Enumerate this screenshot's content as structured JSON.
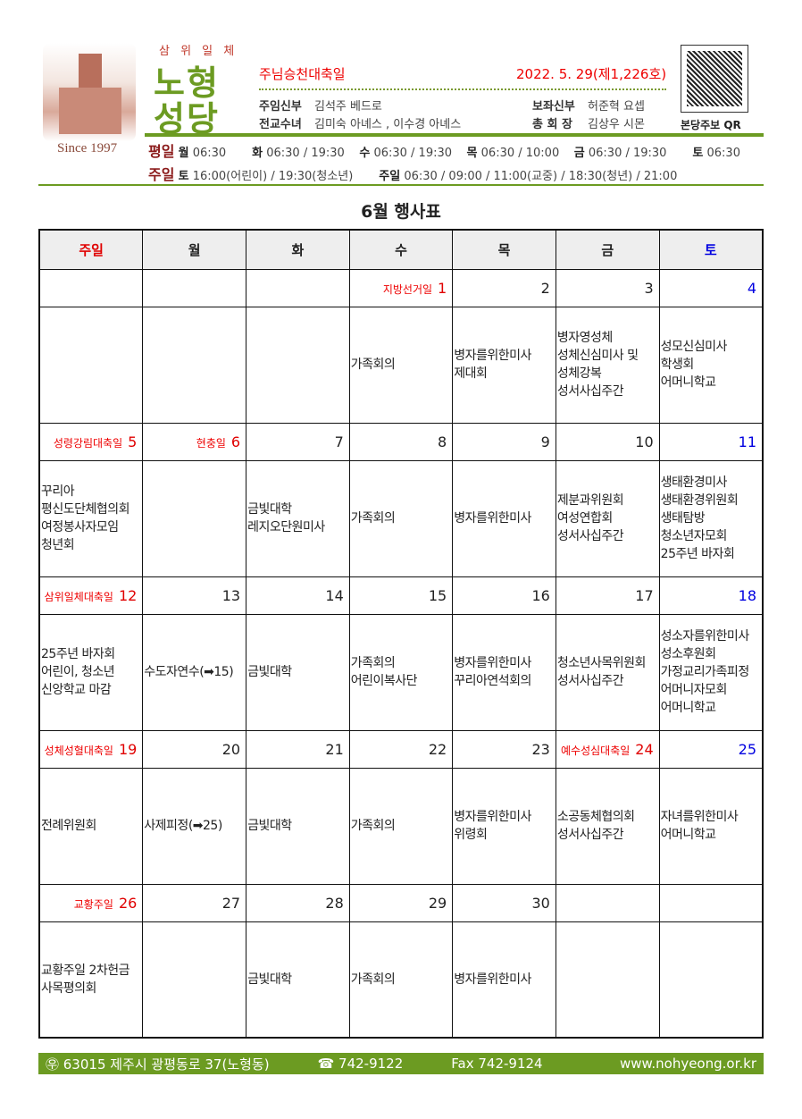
{
  "header": {
    "trinity": "삼 위 일 체",
    "name_line1": "노형",
    "name_line2": "성당",
    "since": "Since 1997",
    "feast": "주님승천대축일",
    "issue": "2022. 5. 29(제1,226호)",
    "staff": [
      {
        "role": "주임신부",
        "name": "김석주 베드로"
      },
      {
        "role": "보좌신부",
        "name": "허준혁 요셉"
      },
      {
        "role": "전교수녀",
        "name": "김미숙 아녜스 , 이수경 아녜스"
      },
      {
        "role": "총 회 장",
        "name": "김상우 시몬"
      }
    ],
    "qr_label": "본당주보 QR"
  },
  "mass": {
    "weekday_label": "평일",
    "weekday": [
      {
        "d": "월",
        "t": "06:30"
      },
      {
        "d": "화",
        "t": "06:30 / 19:30"
      },
      {
        "d": "수",
        "t": "06:30 / 19:30"
      },
      {
        "d": "목",
        "t": "06:30 / 10:00"
      },
      {
        "d": "금",
        "t": "06:30 / 19:30"
      },
      {
        "d": "토",
        "t": "06:30"
      }
    ],
    "sunday_label": "주일",
    "sunday": [
      {
        "d": "토",
        "t": "16:00(어린이) / 19:30(청소년)"
      },
      {
        "d": "주일",
        "t": "06:30 / 09:00 / 11:00(교중) / 18:30(청년) / 21:00"
      }
    ]
  },
  "calendar": {
    "title": "6월 행사표",
    "weekdays": [
      "주일",
      "월",
      "화",
      "수",
      "목",
      "금",
      "토"
    ],
    "colors": {
      "sunday": "#e00000",
      "saturday": "#0000e0",
      "holiday": "#e00000"
    },
    "weeks": [
      [
        {
          "n": "",
          "h": "",
          "e": []
        },
        {
          "n": "",
          "h": "",
          "e": []
        },
        {
          "n": "",
          "h": "",
          "e": []
        },
        {
          "n": "1",
          "h": "지방선거일",
          "e": [
            "가족회의"
          ]
        },
        {
          "n": "2",
          "h": "",
          "e": [
            "병자를위한미사",
            "제대회"
          ]
        },
        {
          "n": "3",
          "h": "",
          "e": [
            "병자영성체",
            "성체신심미사 및",
            "성체강복",
            "성서사십주간"
          ]
        },
        {
          "n": "4",
          "h": "",
          "e": [
            "성모신심미사",
            "학생회",
            "어머니학교"
          ]
        }
      ],
      [
        {
          "n": "5",
          "h": "성령강림대축일",
          "e": [
            "꾸리아",
            "평신도단체협의회",
            "여정봉사자모임",
            "청년회"
          ]
        },
        {
          "n": "6",
          "h": "현충일",
          "e": []
        },
        {
          "n": "7",
          "h": "",
          "e": [
            "금빛대학",
            "레지오단원미사"
          ]
        },
        {
          "n": "8",
          "h": "",
          "e": [
            "가족회의"
          ]
        },
        {
          "n": "9",
          "h": "",
          "e": [
            "병자를위한미사"
          ]
        },
        {
          "n": "10",
          "h": "",
          "e": [
            "제분과위원회",
            "여성연합회",
            "성서사십주간"
          ]
        },
        {
          "n": "11",
          "h": "",
          "e": [
            "생태환경미사",
            "생태환경위원회",
            "생태탐방",
            "청소년자모회",
            "25주년 바자회"
          ]
        }
      ],
      [
        {
          "n": "12",
          "h": "삼위일체대축일",
          "e": [
            "25주년 바자회",
            "어린이, 청소년",
            "신앙학교 마감"
          ]
        },
        {
          "n": "13",
          "h": "",
          "e": [
            "수도자연수(➡15)"
          ]
        },
        {
          "n": "14",
          "h": "",
          "e": [
            "금빛대학"
          ]
        },
        {
          "n": "15",
          "h": "",
          "e": [
            "가족회의",
            "어린이복사단"
          ]
        },
        {
          "n": "16",
          "h": "",
          "e": [
            "병자를위한미사",
            "꾸리아연석회의"
          ]
        },
        {
          "n": "17",
          "h": "",
          "e": [
            "청소년사목위원회",
            "성서사십주간"
          ]
        },
        {
          "n": "18",
          "h": "",
          "e": [
            "성소자를위한미사",
            "성소후원회",
            "가정교리가족피정",
            "어머니자모회",
            "어머니학교"
          ]
        }
      ],
      [
        {
          "n": "19",
          "h": "성체성혈대축일",
          "e": [
            "전례위원회"
          ]
        },
        {
          "n": "20",
          "h": "",
          "e": [
            "사제피정(➡25)"
          ]
        },
        {
          "n": "21",
          "h": "",
          "e": [
            "금빛대학"
          ]
        },
        {
          "n": "22",
          "h": "",
          "e": [
            "가족회의"
          ]
        },
        {
          "n": "23",
          "h": "",
          "e": [
            "병자를위한미사",
            "위령회"
          ]
        },
        {
          "n": "24",
          "h": "예수성심대축일",
          "e": [
            "소공동체협의회",
            "성서사십주간"
          ]
        },
        {
          "n": "25",
          "h": "",
          "e": [
            "자녀를위한미사",
            "어머니학교"
          ]
        }
      ],
      [
        {
          "n": "26",
          "h": "교황주일",
          "e": [
            "교황주일 2차헌금",
            "사목평의회"
          ]
        },
        {
          "n": "27",
          "h": "",
          "e": []
        },
        {
          "n": "28",
          "h": "",
          "e": [
            "금빛대학"
          ]
        },
        {
          "n": "29",
          "h": "",
          "e": [
            "가족회의"
          ]
        },
        {
          "n": "30",
          "h": "",
          "e": [
            "병자를위한미사"
          ]
        },
        {
          "n": "",
          "h": "",
          "e": []
        },
        {
          "n": "",
          "h": "",
          "e": []
        }
      ]
    ]
  },
  "footer": {
    "address": "㉾ 63015  제주시 광평동로 37(노형동)",
    "phone": "☎ 742-9122",
    "fax": "Fax  742-9124",
    "web": "www.nohyeong.or.kr"
  }
}
